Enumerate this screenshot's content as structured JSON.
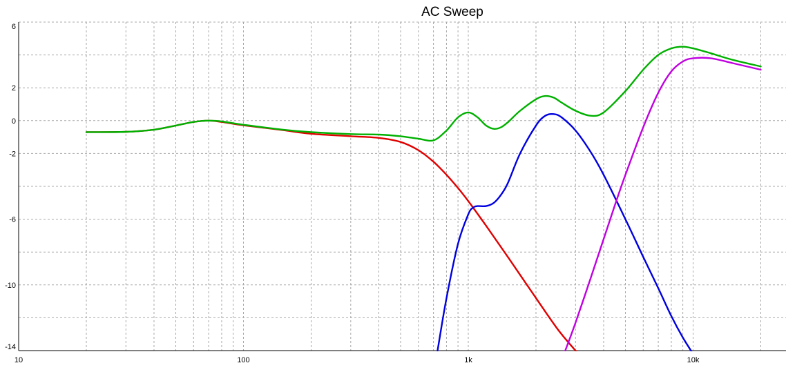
{
  "chart_data": {
    "type": "line",
    "title": "AC Sweep",
    "xlabel": "",
    "ylabel": "",
    "xscale": "log",
    "xlim": [
      10,
      20000
    ],
    "ylim": [
      -14,
      6
    ],
    "grid": true,
    "legend": "none",
    "x_ticks": [
      {
        "value": 10,
        "label": "10"
      },
      {
        "value": 100,
        "label": "100"
      },
      {
        "value": 1000,
        "label": "1k"
      },
      {
        "value": 10000,
        "label": "10k"
      }
    ],
    "y_ticks": [
      {
        "value": 6,
        "label": "6"
      },
      {
        "value": 4,
        "label": ""
      },
      {
        "value": 2,
        "label": "2"
      },
      {
        "value": 0,
        "label": "0"
      },
      {
        "value": -2,
        "label": "-2"
      },
      {
        "value": -4,
        "label": ""
      },
      {
        "value": -6,
        "label": "-6"
      },
      {
        "value": -8,
        "label": ""
      },
      {
        "value": -10,
        "label": "-10"
      },
      {
        "value": -12,
        "label": ""
      },
      {
        "value": -14,
        "label": "-14"
      }
    ],
    "series": [
      {
        "color": "#e00000",
        "x": [
          20,
          30,
          40,
          50,
          60,
          70,
          80,
          100,
          150,
          200,
          300,
          400,
          500,
          600,
          700,
          800,
          900,
          1000,
          1200,
          1500,
          2000,
          2500,
          3000,
          3200
        ],
        "y": [
          -0.7,
          -0.68,
          -0.55,
          -0.3,
          -0.08,
          0.0,
          -0.08,
          -0.28,
          -0.58,
          -0.8,
          -0.95,
          -1.05,
          -1.3,
          -1.8,
          -2.5,
          -3.3,
          -4.1,
          -4.9,
          -6.4,
          -8.3,
          -10.8,
          -12.7,
          -14.0,
          -14.4
        ]
      },
      {
        "color": "#0000e0",
        "x": [
          730,
          800,
          900,
          1000,
          1050,
          1100,
          1200,
          1300,
          1400,
          1500,
          1700,
          2000,
          2200,
          2400,
          2600,
          3000,
          3500,
          4000,
          5000,
          6000,
          7000,
          8000,
          9000,
          10000
        ],
        "y": [
          -14,
          -10.8,
          -7.5,
          -5.7,
          -5.3,
          -5.2,
          -5.2,
          -5.0,
          -4.5,
          -3.8,
          -2.0,
          -0.3,
          0.3,
          0.4,
          0.2,
          -0.6,
          -1.9,
          -3.3,
          -6.0,
          -8.3,
          -10.2,
          -11.9,
          -13.2,
          -14.2
        ]
      },
      {
        "color": "#c000e0",
        "x": [
          2700,
          3000,
          3500,
          4000,
          4500,
          5000,
          6000,
          7000,
          8000,
          9000,
          10000,
          12000,
          15000,
          20000
        ],
        "y": [
          -14,
          -12.3,
          -9.6,
          -7.2,
          -5.1,
          -3.3,
          -0.4,
          1.7,
          3.0,
          3.6,
          3.8,
          3.8,
          3.5,
          3.1
        ]
      },
      {
        "color": "#00b000",
        "x": [
          20,
          30,
          40,
          50,
          60,
          70,
          80,
          100,
          150,
          200,
          300,
          400,
          500,
          600,
          700,
          800,
          900,
          1000,
          1100,
          1200,
          1300,
          1400,
          1500,
          1700,
          2000,
          2200,
          2400,
          2600,
          3000,
          3500,
          4000,
          5000,
          6000,
          7000,
          8000,
          9000,
          10000,
          12000,
          15000,
          20000
        ],
        "y": [
          -0.7,
          -0.68,
          -0.55,
          -0.3,
          -0.08,
          0.0,
          -0.05,
          -0.25,
          -0.55,
          -0.7,
          -0.82,
          -0.85,
          -0.95,
          -1.1,
          -1.2,
          -0.6,
          0.2,
          0.5,
          0.2,
          -0.3,
          -0.5,
          -0.4,
          -0.1,
          0.6,
          1.3,
          1.5,
          1.4,
          1.1,
          0.6,
          0.3,
          0.5,
          1.8,
          3.1,
          4.0,
          4.4,
          4.5,
          4.4,
          4.1,
          3.7,
          3.3
        ]
      }
    ]
  }
}
